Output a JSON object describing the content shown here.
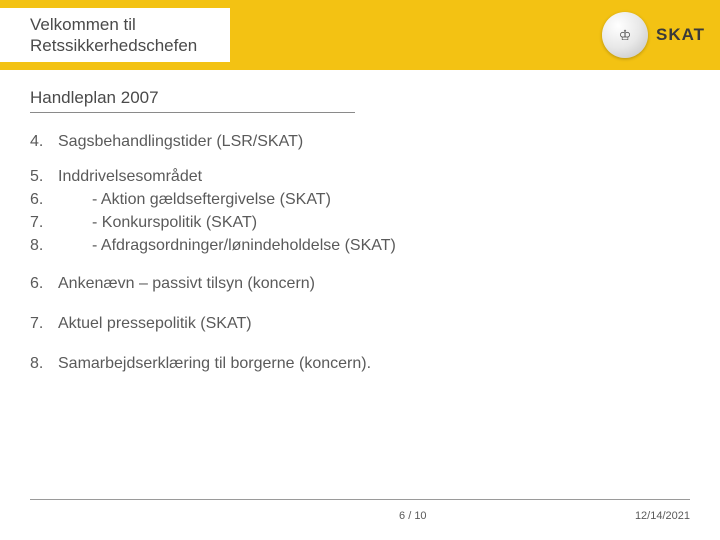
{
  "header": {
    "title_line1": "Velkommen til",
    "title_line2": "Retssikkerhedschefen",
    "logo_text": "SKAT",
    "logo_glyph": "♔"
  },
  "subtitle": "Handleplan 2007",
  "items": [
    {
      "num": "4.",
      "text": "Sagsbehandlingstider (LSR/SKAT)",
      "indent": false
    },
    {
      "num": "5.",
      "text": "Inddrivelsesområdet",
      "indent": false
    },
    {
      "num": "6.",
      "text": "- Aktion gældseftergivelse (SKAT)",
      "indent": true
    },
    {
      "num": "7.",
      "text": "- Konkurspolitik (SKAT)",
      "indent": true
    },
    {
      "num": "8.",
      "text": "- Afdragsordninger/lønindeholdelse (SKAT)",
      "indent": true
    },
    {
      "num": "6.",
      "text": "Ankenævn – passivt tilsyn (koncern)",
      "indent": false
    },
    {
      "num": "7.",
      "text": "Aktuel pressepolitik (SKAT)",
      "indent": false
    },
    {
      "num": "8.",
      "text": "Samarbejdserklæring til borgerne (koncern).",
      "indent": false
    }
  ],
  "footer": {
    "page": "6 / 10",
    "date": "12/14/2021"
  },
  "colors": {
    "header_bg": "#f3c213",
    "text": "#5a5a5a"
  }
}
